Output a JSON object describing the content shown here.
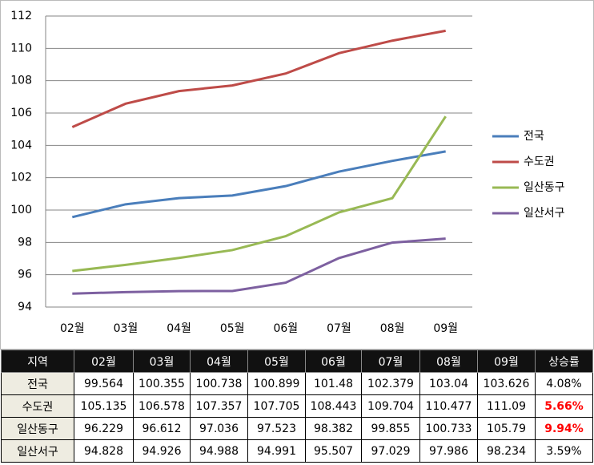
{
  "chart_data": {
    "type": "line",
    "categories": [
      "02월",
      "03월",
      "04월",
      "05월",
      "06월",
      "07월",
      "08월",
      "09월"
    ],
    "series": [
      {
        "name": "전국",
        "color": "#4a7ebb",
        "values": [
          99.564,
          100.355,
          100.738,
          100.899,
          101.48,
          102.379,
          103.04,
          103.626
        ]
      },
      {
        "name": "수도권",
        "color": "#be4b48",
        "values": [
          105.135,
          106.578,
          107.357,
          107.705,
          108.443,
          109.704,
          110.477,
          111.09
        ]
      },
      {
        "name": "일산동구",
        "color": "#98b954",
        "values": [
          96.229,
          96.612,
          97.036,
          97.523,
          98.382,
          99.855,
          100.733,
          105.79
        ]
      },
      {
        "name": "일산서구",
        "color": "#7d60a0",
        "values": [
          94.828,
          94.926,
          94.988,
          94.991,
          95.507,
          97.029,
          97.986,
          98.234
        ]
      }
    ],
    "ylim": [
      94,
      112
    ],
    "yticks": [
      94,
      96,
      98,
      100,
      102,
      104,
      106,
      108,
      110,
      112
    ],
    "grid": true,
    "legend": "right"
  },
  "table": {
    "region_header": "지역",
    "rate_header": "상승률",
    "rates": [
      "4.08%",
      "5.66%",
      "9.94%",
      "3.59%"
    ],
    "rate_highlight": [
      false,
      true,
      true,
      false
    ],
    "highlight_color": "#ff0000"
  }
}
